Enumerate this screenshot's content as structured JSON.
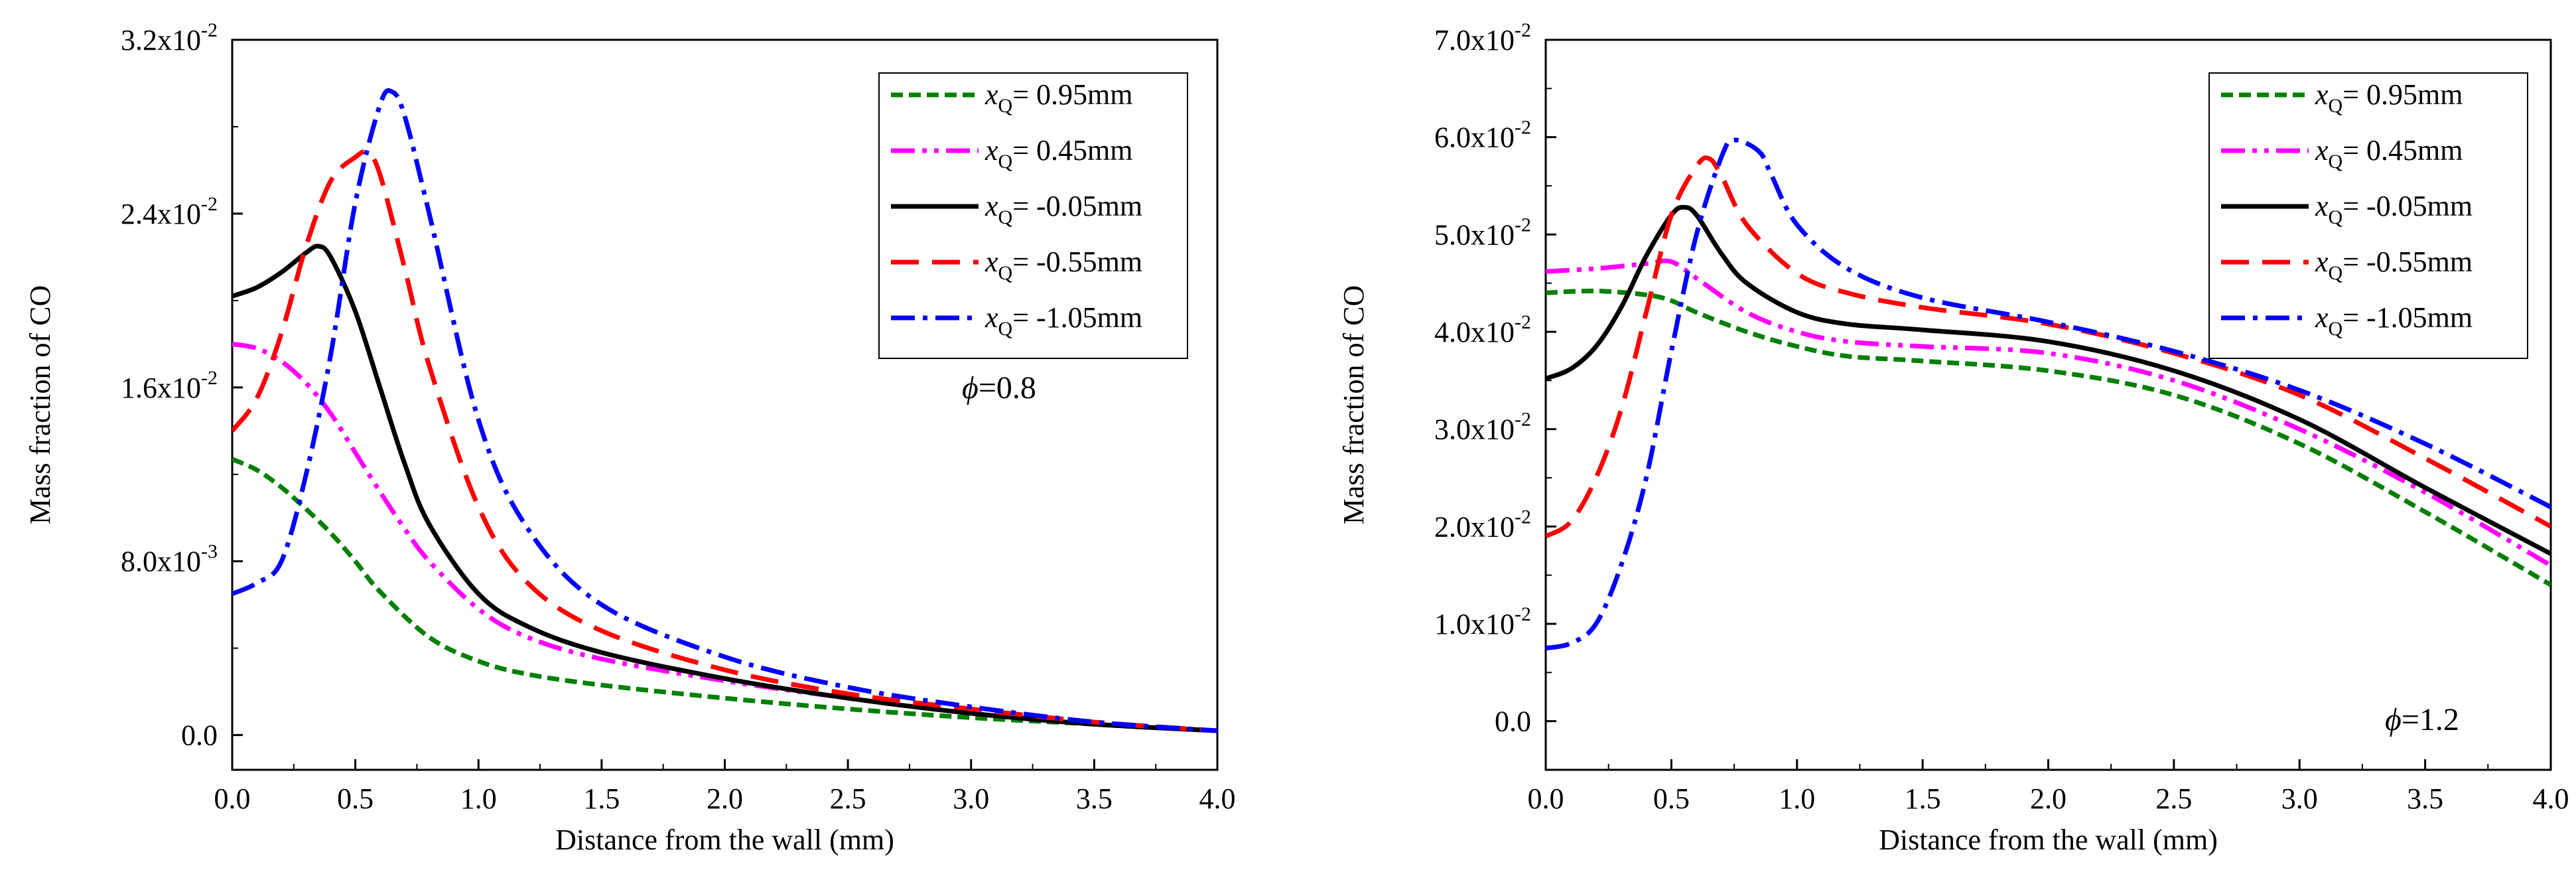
{
  "chart_data": [
    {
      "type": "line",
      "xlabel": "Distance from the wall (mm)",
      "ylabel": "Mass fraction of CO",
      "xlim": [
        0.0,
        4.0
      ],
      "ylim": [
        -0.0016,
        0.032
      ],
      "xticks": [
        "0.0",
        "0.5",
        "1.0",
        "1.5",
        "2.0",
        "2.5",
        "3.0",
        "3.5",
        "4.0"
      ],
      "yticks": [
        {
          "value": 0.0,
          "mant": "0.0",
          "exp": ""
        },
        {
          "value": 0.008,
          "mant": "8.0x10",
          "exp": "-3"
        },
        {
          "value": 0.016,
          "mant": "1.6x10",
          "exp": "-2"
        },
        {
          "value": 0.024,
          "mant": "2.4x10",
          "exp": "-2"
        },
        {
          "value": 0.032,
          "mant": "3.2x10",
          "exp": "-2"
        }
      ],
      "annotation": {
        "symbol": "ϕ",
        "text": "=0.8"
      },
      "legend_position": "top-right",
      "series": [
        {
          "name": "0.95mm",
          "sign": "= ",
          "color": "#008000",
          "dash": "short",
          "x": [
            0,
            0.1,
            0.2,
            0.3,
            0.4,
            0.5,
            0.6,
            0.8,
            1.0,
            1.2,
            1.5,
            2.0,
            2.5,
            3.0,
            3.5,
            4.0
          ],
          "y": [
            0.0127,
            0.0122,
            0.0114,
            0.0104,
            0.0093,
            0.008,
            0.0066,
            0.0045,
            0.0034,
            0.0028,
            0.0023,
            0.0017,
            0.0012,
            0.0008,
            0.0005,
            0.0002
          ]
        },
        {
          "name": "0.45mm",
          "sign": "= ",
          "color": "#ff00ff",
          "dash": "dashdotdot",
          "x": [
            0,
            0.1,
            0.2,
            0.3,
            0.4,
            0.5,
            0.6,
            0.7,
            0.8,
            1.0,
            1.2,
            1.5,
            2.0,
            2.5,
            3.0,
            3.5,
            4.0
          ],
          "y": [
            0.018,
            0.0178,
            0.0172,
            0.0162,
            0.0148,
            0.013,
            0.0112,
            0.0095,
            0.008,
            0.0058,
            0.0045,
            0.0035,
            0.0025,
            0.0017,
            0.001,
            0.0005,
            0.0002
          ]
        },
        {
          "name": "-0.05mm",
          "sign": "= ",
          "color": "#000000",
          "dash": "solid",
          "x": [
            0,
            0.1,
            0.2,
            0.3,
            0.35,
            0.4,
            0.5,
            0.6,
            0.7,
            0.8,
            1.0,
            1.2,
            1.5,
            2.0,
            2.5,
            3.0,
            3.5,
            4.0
          ],
          "y": [
            0.0202,
            0.0206,
            0.0213,
            0.0222,
            0.0225,
            0.022,
            0.0195,
            0.016,
            0.0125,
            0.0097,
            0.0065,
            0.005,
            0.0038,
            0.0026,
            0.0017,
            0.001,
            0.0005,
            0.0002
          ]
        },
        {
          "name": "-0.55mm",
          "sign": "= ",
          "color": "#ff0000",
          "dash": "long",
          "x": [
            0,
            0.1,
            0.2,
            0.3,
            0.4,
            0.5,
            0.55,
            0.6,
            0.7,
            0.8,
            1.0,
            1.2,
            1.5,
            2.0,
            2.5,
            3.0,
            3.5,
            4.0
          ],
          "y": [
            0.014,
            0.0155,
            0.0185,
            0.0225,
            0.0255,
            0.0266,
            0.0268,
            0.0258,
            0.0215,
            0.017,
            0.0105,
            0.007,
            0.0048,
            0.003,
            0.0019,
            0.0012,
            0.0006,
            0.0002
          ]
        },
        {
          "name": "-1.05mm",
          "sign": "= ",
          "color": "#0000ff",
          "dash": "dashdot",
          "x": [
            0,
            0.1,
            0.2,
            0.3,
            0.4,
            0.5,
            0.6,
            0.65,
            0.7,
            0.8,
            1.0,
            1.2,
            1.5,
            2.0,
            2.5,
            3.0,
            3.5,
            4.0
          ],
          "y": [
            0.0065,
            0.007,
            0.008,
            0.012,
            0.0175,
            0.0245,
            0.029,
            0.0296,
            0.0285,
            0.024,
            0.0145,
            0.0095,
            0.006,
            0.0036,
            0.0022,
            0.0013,
            0.0006,
            0.0002
          ]
        }
      ]
    },
    {
      "type": "line",
      "xlabel": "Distance from the wall (mm)",
      "ylabel": "Mass fraction of CO",
      "xlim": [
        0.0,
        4.0
      ],
      "ylim": [
        -0.005,
        0.07
      ],
      "xticks": [
        "0.0",
        "0.5",
        "1.0",
        "1.5",
        "2.0",
        "2.5",
        "3.0",
        "3.5",
        "4.0"
      ],
      "yticks": [
        {
          "value": 0.0,
          "mant": "0.0",
          "exp": ""
        },
        {
          "value": 0.01,
          "mant": "1.0x10",
          "exp": "-2"
        },
        {
          "value": 0.02,
          "mant": "2.0x10",
          "exp": "-2"
        },
        {
          "value": 0.03,
          "mant": "3.0x10",
          "exp": "-2"
        },
        {
          "value": 0.04,
          "mant": "4.0x10",
          "exp": "-2"
        },
        {
          "value": 0.05,
          "mant": "5.0x10",
          "exp": "-2"
        },
        {
          "value": 0.06,
          "mant": "6.0x10",
          "exp": "-2"
        },
        {
          "value": 0.07,
          "mant": "7.0x10",
          "exp": "-2"
        }
      ],
      "annotation": {
        "symbol": "ϕ",
        "text": "=1.2"
      },
      "legend_position": "top-right",
      "series": [
        {
          "name": "0.95mm",
          "sign": "= ",
          "color": "#008000",
          "dash": "short",
          "x": [
            0,
            0.2,
            0.4,
            0.5,
            0.6,
            0.8,
            1.0,
            1.2,
            1.5,
            2.0,
            2.5,
            3.0,
            3.5,
            4.0
          ],
          "y": [
            0.044,
            0.0442,
            0.0438,
            0.0432,
            0.042,
            0.04,
            0.0385,
            0.0375,
            0.037,
            0.036,
            0.0335,
            0.0285,
            0.0215,
            0.014
          ]
        },
        {
          "name": "0.45mm",
          "sign": "= ",
          "color": "#ff00ff",
          "dash": "dashdotdot",
          "x": [
            0,
            0.2,
            0.4,
            0.5,
            0.6,
            0.8,
            1.0,
            1.2,
            1.5,
            2.0,
            2.5,
            3.0,
            3.5,
            4.0
          ],
          "y": [
            0.0462,
            0.0465,
            0.047,
            0.0472,
            0.0455,
            0.042,
            0.04,
            0.039,
            0.0385,
            0.0378,
            0.035,
            0.03,
            0.0235,
            0.016
          ]
        },
        {
          "name": "-0.05mm",
          "sign": "= ",
          "color": "#000000",
          "dash": "solid",
          "x": [
            0,
            0.1,
            0.2,
            0.3,
            0.4,
            0.5,
            0.55,
            0.6,
            0.7,
            0.8,
            1.0,
            1.2,
            1.5,
            2.0,
            2.5,
            3.0,
            3.5,
            4.0
          ],
          "y": [
            0.0352,
            0.0362,
            0.0385,
            0.0425,
            0.0478,
            0.052,
            0.0528,
            0.052,
            0.048,
            0.045,
            0.042,
            0.0408,
            0.0402,
            0.039,
            0.036,
            0.031,
            0.024,
            0.0172
          ]
        },
        {
          "name": "-0.55mm",
          "sign": "= ",
          "color": "#ff0000",
          "dash": "long",
          "x": [
            0,
            0.1,
            0.2,
            0.3,
            0.4,
            0.5,
            0.6,
            0.65,
            0.7,
            0.8,
            1.0,
            1.2,
            1.5,
            2.0,
            2.5,
            3.0,
            3.5,
            4.0
          ],
          "y": [
            0.019,
            0.0205,
            0.025,
            0.032,
            0.042,
            0.052,
            0.057,
            0.0578,
            0.056,
            0.051,
            0.046,
            0.044,
            0.0425,
            0.0408,
            0.0378,
            0.0335,
            0.027,
            0.02
          ]
        },
        {
          "name": "-1.05mm",
          "sign": "= ",
          "color": "#0000ff",
          "dash": "dashdot",
          "x": [
            0,
            0.1,
            0.2,
            0.3,
            0.4,
            0.5,
            0.6,
            0.7,
            0.75,
            0.85,
            0.9,
            1.0,
            1.2,
            1.5,
            2.0,
            2.5,
            3.0,
            3.5,
            4.0
          ],
          "y": [
            0.0075,
            0.008,
            0.01,
            0.016,
            0.025,
            0.038,
            0.05,
            0.058,
            0.0597,
            0.0585,
            0.056,
            0.051,
            0.0465,
            0.0435,
            0.041,
            0.038,
            0.034,
            0.0285,
            0.022
          ]
        }
      ]
    }
  ]
}
